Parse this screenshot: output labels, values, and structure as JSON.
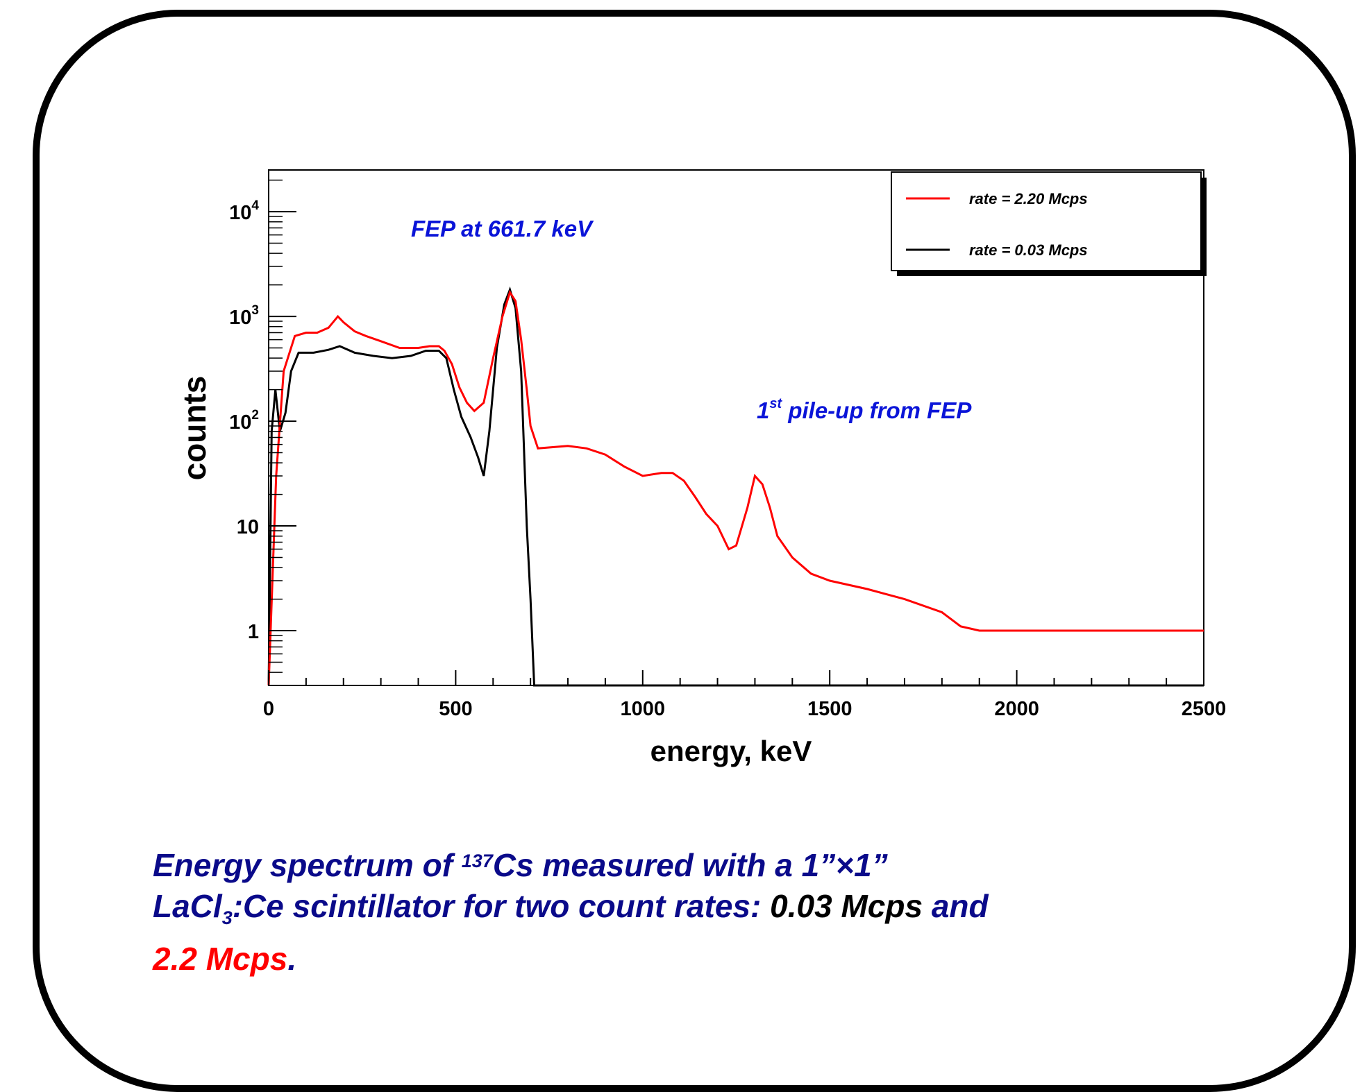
{
  "chart_data": {
    "type": "line",
    "xlabel": "energy, keV",
    "ylabel": "counts",
    "x_ticks": [
      0,
      500,
      1000,
      1500,
      2000,
      2500
    ],
    "y_ticks": [
      {
        "value": 1,
        "base": "1",
        "exp": ""
      },
      {
        "value": 10,
        "base": "10",
        "exp": ""
      },
      {
        "value": 100,
        "base": "10",
        "exp": "2"
      },
      {
        "value": 1000,
        "base": "10",
        "exp": "3"
      },
      {
        "value": 10000,
        "base": "10",
        "exp": "4"
      }
    ],
    "xlim": [
      0,
      2500
    ],
    "ylim": [
      0.3,
      25000
    ],
    "yscale": "log",
    "grid": false,
    "legend_position": "top-right",
    "annotations": {
      "fep": "FEP at 661.7 keV",
      "pileup_sup": "st",
      "pileup_num": "1",
      "pileup_text": " pile-up from FEP"
    },
    "series": [
      {
        "name": "rate = 2.20 Mcps",
        "color": "#ff0000",
        "points": [
          [
            0,
            0.3
          ],
          [
            10,
            3
          ],
          [
            20,
            30
          ],
          [
            40,
            300
          ],
          [
            70,
            650
          ],
          [
            100,
            700
          ],
          [
            130,
            700
          ],
          [
            160,
            780
          ],
          [
            185,
            1000
          ],
          [
            200,
            880
          ],
          [
            230,
            720
          ],
          [
            260,
            650
          ],
          [
            300,
            580
          ],
          [
            350,
            500
          ],
          [
            400,
            500
          ],
          [
            430,
            520
          ],
          [
            455,
            520
          ],
          [
            470,
            470
          ],
          [
            490,
            350
          ],
          [
            510,
            210
          ],
          [
            530,
            150
          ],
          [
            550,
            125
          ],
          [
            575,
            150
          ],
          [
            600,
            400
          ],
          [
            625,
            1000
          ],
          [
            645,
            1700
          ],
          [
            660,
            1400
          ],
          [
            675,
            600
          ],
          [
            690,
            200
          ],
          [
            700,
            90
          ],
          [
            720,
            55
          ],
          [
            800,
            58
          ],
          [
            850,
            55
          ],
          [
            900,
            48
          ],
          [
            950,
            37
          ],
          [
            1000,
            30
          ],
          [
            1050,
            32
          ],
          [
            1080,
            32
          ],
          [
            1110,
            27
          ],
          [
            1140,
            19
          ],
          [
            1170,
            13
          ],
          [
            1200,
            10
          ],
          [
            1230,
            6
          ],
          [
            1250,
            6.5
          ],
          [
            1280,
            15
          ],
          [
            1300,
            30
          ],
          [
            1320,
            25
          ],
          [
            1340,
            15
          ],
          [
            1360,
            8
          ],
          [
            1400,
            5
          ],
          [
            1450,
            3.5
          ],
          [
            1500,
            3
          ],
          [
            1600,
            2.5
          ],
          [
            1700,
            2
          ],
          [
            1800,
            1.5
          ],
          [
            1850,
            1.1
          ],
          [
            1900,
            1
          ],
          [
            2000,
            1
          ],
          [
            2100,
            1
          ],
          [
            2200,
            1
          ],
          [
            2300,
            1
          ],
          [
            2400,
            1
          ],
          [
            2500,
            1
          ]
        ]
      },
      {
        "name": "rate = 0.03 Mcps",
        "color": "#000000",
        "points": [
          [
            0,
            0.3
          ],
          [
            8,
            80
          ],
          [
            18,
            200
          ],
          [
            30,
            80
          ],
          [
            45,
            120
          ],
          [
            60,
            300
          ],
          [
            80,
            450
          ],
          [
            120,
            450
          ],
          [
            160,
            480
          ],
          [
            190,
            520
          ],
          [
            230,
            450
          ],
          [
            280,
            420
          ],
          [
            330,
            400
          ],
          [
            380,
            420
          ],
          [
            420,
            470
          ],
          [
            455,
            470
          ],
          [
            475,
            400
          ],
          [
            495,
            200
          ],
          [
            515,
            110
          ],
          [
            540,
            70
          ],
          [
            560,
            45
          ],
          [
            575,
            30
          ],
          [
            590,
            80
          ],
          [
            610,
            500
          ],
          [
            630,
            1300
          ],
          [
            645,
            1800
          ],
          [
            660,
            1200
          ],
          [
            675,
            300
          ],
          [
            690,
            10
          ],
          [
            700,
            2
          ],
          [
            710,
            0.3
          ],
          [
            2500,
            0.3
          ]
        ]
      }
    ]
  },
  "caption": {
    "line1_pre": "Energy spectrum of ",
    "line1_sup": "137",
    "line1_post": "Cs measured with a 1”×1”",
    "line2_pre": "LaCl",
    "line2_sub": "3",
    "line2_mid": ":Ce scintillator for two count rates: ",
    "line2_black": "0.03 Mcps",
    "line2_post": " and",
    "line3_red": "2.2 Mcps",
    "line3_post": "."
  }
}
